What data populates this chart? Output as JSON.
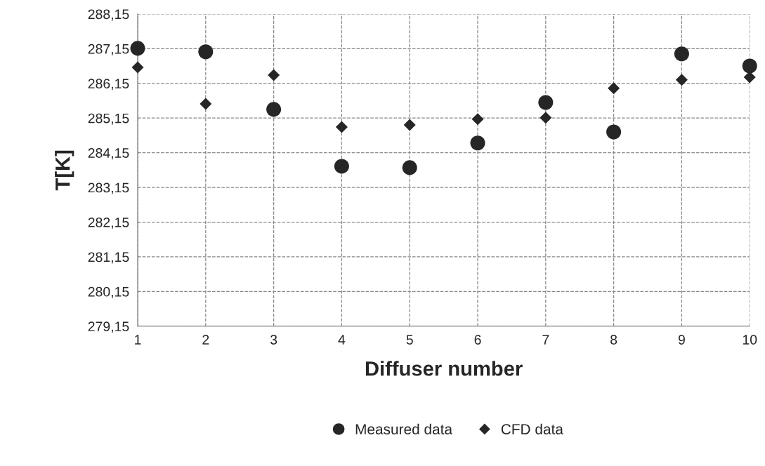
{
  "chart_data": {
    "type": "scatter",
    "xlabel": "Diffuser number",
    "ylabel": "T[K]",
    "x": [
      1,
      2,
      3,
      4,
      5,
      6,
      7,
      8,
      9,
      10
    ],
    "series": [
      {
        "name": "Measured data",
        "color": "#262626",
        "marker": "circle",
        "values": [
          287.16,
          287.06,
          285.4,
          283.76,
          283.72,
          284.43,
          285.6,
          284.75,
          287.0,
          286.65
        ]
      },
      {
        "name": "CFD data",
        "color": "#262626",
        "marker": "diamond",
        "values": [
          286.61,
          285.56,
          286.39,
          284.89,
          284.95,
          285.12,
          285.16,
          286.01,
          286.25,
          286.33
        ]
      }
    ],
    "xlim": [
      1,
      10
    ],
    "xticks": [
      1,
      2,
      3,
      4,
      5,
      6,
      7,
      8,
      9,
      10
    ],
    "ylim": [
      279.15,
      288.15
    ],
    "yticks": [
      {
        "value": 279.15,
        "label": "279,15"
      },
      {
        "value": 280.15,
        "label": "280,15"
      },
      {
        "value": 281.15,
        "label": "281,15"
      },
      {
        "value": 282.15,
        "label": "282,15"
      },
      {
        "value": 283.15,
        "label": "283,15"
      },
      {
        "value": 284.15,
        "label": "284,15"
      },
      {
        "value": 285.15,
        "label": "285,15"
      },
      {
        "value": 286.15,
        "label": "286,15"
      },
      {
        "value": 287.15,
        "label": "287,15"
      },
      {
        "value": 288.15,
        "label": "288,15"
      }
    ],
    "grid": true,
    "legend": "bottom"
  }
}
